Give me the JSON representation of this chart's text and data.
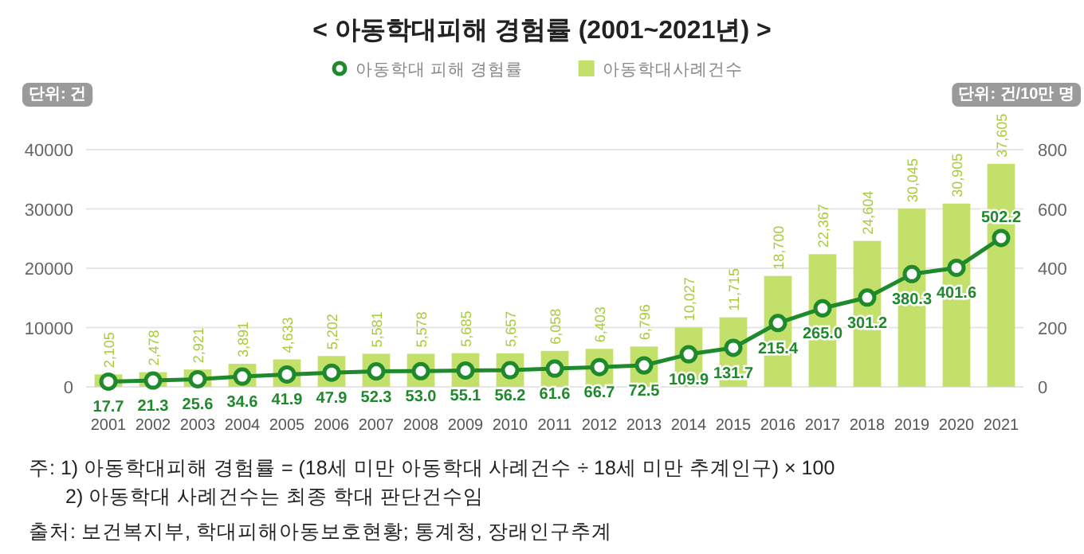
{
  "chart_data": {
    "type": "bar",
    "title": "< 아동학대피해 경험률 (2001~2021년) >",
    "ylabel": "단위: 건",
    "y2label": "단위: 건/10만 명",
    "categories": [
      "2001",
      "2002",
      "2003",
      "2004",
      "2005",
      "2006",
      "2007",
      "2008",
      "2009",
      "2010",
      "2011",
      "2012",
      "2013",
      "2014",
      "2015",
      "2016",
      "2017",
      "2018",
      "2019",
      "2020",
      "2021"
    ],
    "series": [
      {
        "name": "아동학대 피해 경험률",
        "type": "line",
        "axis": "y2",
        "color": "#1f8a2c",
        "marker": "circle",
        "line_style": "solid",
        "values": [
          17.7,
          21.3,
          25.6,
          34.6,
          41.9,
          47.9,
          52.3,
          53.0,
          55.1,
          56.2,
          61.6,
          66.7,
          72.5,
          109.9,
          131.7,
          215.4,
          265.0,
          301.2,
          380.3,
          401.6,
          502.2
        ],
        "value_labels": [
          "17.7",
          "21.3",
          "25.6",
          "34.6",
          "41.9",
          "47.9",
          "52.3",
          "53.0",
          "55.1",
          "56.2",
          "61.6",
          "66.7",
          "72.5",
          "109.9",
          "131.7",
          "215.4",
          "265.0",
          "301.2",
          "380.3",
          "401.6",
          "502.2"
        ]
      },
      {
        "name": "아동학대사례건수",
        "color": "#c3e06b",
        "values": [
          2105,
          2478,
          2921,
          3891,
          4633,
          5202,
          5581,
          5578,
          5685,
          5657,
          6058,
          6403,
          6796,
          10027,
          11715,
          18700,
          22367,
          24604,
          30045,
          30905,
          37605
        ],
        "value_labels": [
          "2,105",
          "2,478",
          "2,921",
          "3,891",
          "4,633",
          "5,202",
          "5,581",
          "5,578",
          "5,685",
          "5,657",
          "6,058",
          "6,403",
          "6,796",
          "10,027",
          "11,715",
          "18,700",
          "22,367",
          "24,604",
          "30,045",
          "30,905",
          "37,605"
        ]
      }
    ],
    "ylim": [
      0,
      40000
    ],
    "yticks": [
      0,
      10000,
      20000,
      30000,
      40000
    ],
    "y2lim": [
      0,
      800
    ],
    "y2ticks": [
      0,
      200,
      400,
      600,
      800
    ],
    "grid": "y",
    "legend": "top",
    "annotations": [
      "주: 1) 아동학대피해 경험률 = (18세 미만 아동학대 사례건수 ÷ 18세 미만 추계인구) × 100",
      "2) 아동학대 사례건수는 최종 학대 판단건수임",
      "출처: 보건복지부, 학대피해아동보호현황; 통계청, 장래인구추계"
    ]
  }
}
